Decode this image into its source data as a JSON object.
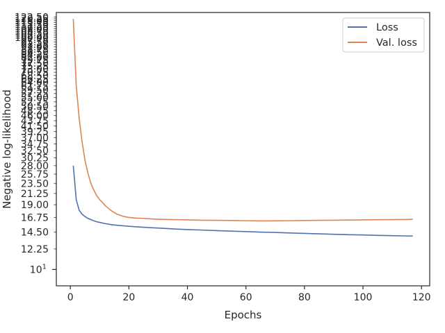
{
  "chart_data": {
    "type": "line",
    "title": "",
    "xlabel": "Epochs",
    "ylabel": "Negative log-likelihood",
    "yscale": "log",
    "xlim": [
      -4.8,
      122.8
    ],
    "ylim": [
      8.5,
      128
    ],
    "xticks": [
      0,
      20,
      40,
      60,
      80,
      100,
      120
    ],
    "ytick_labels": [
      "12.25",
      "14.50",
      "16.75",
      "19.00",
      "21.25",
      "23.50",
      "25.75",
      "28.00",
      "30.25",
      "32.50",
      "34.75",
      "37.00",
      "39.25",
      "41.50",
      "43.75",
      "46.00",
      "48.25",
      "50.50",
      "52.75",
      "55.00",
      "57.25",
      "59.50",
      "61.75",
      "64.00",
      "66.25",
      "68.50",
      "70.75",
      "73.00",
      "75.25",
      "77.50",
      "79.75",
      "82.00",
      "84.25",
      "86.50",
      "88.75",
      "91.00",
      "93.25",
      "95.50",
      "97.75",
      "100.00",
      "102.25",
      "104.50",
      "106.75",
      "109.00",
      "111.25",
      "113.50",
      "115.75",
      "118.00",
      "120.25",
      "122.50"
    ],
    "ytick_values": [
      12.25,
      14.5,
      16.75,
      19,
      21.25,
      23.5,
      25.75,
      28,
      30.25,
      32.5,
      34.75,
      37,
      39.25,
      41.5,
      43.75,
      46,
      48.25,
      50.5,
      52.75,
      55,
      57.25,
      59.5,
      61.75,
      64,
      66.25,
      68.5,
      70.75,
      73,
      75.25,
      77.5,
      79.75,
      82,
      84.25,
      86.5,
      88.75,
      91,
      93.25,
      95.5,
      97.75,
      100,
      102.25,
      104.5,
      106.75,
      109,
      111.25,
      113.5,
      115.75,
      118,
      120.25,
      122.5
    ],
    "major_tick": {
      "value": 10,
      "label_base": "10",
      "label_exp": "1"
    },
    "grid": false,
    "legend_position": "top-right",
    "series": [
      {
        "name": "Loss",
        "color": "#4c72b0",
        "x": [
          1,
          2,
          3,
          4,
          5,
          6,
          7,
          8,
          9,
          10,
          12,
          14,
          16,
          18,
          20,
          22,
          25,
          28,
          30,
          35,
          40,
          45,
          50,
          55,
          60,
          65,
          70,
          75,
          80,
          85,
          90,
          95,
          100,
          105,
          110,
          115,
          117
        ],
        "y": [
          28.0,
          20.0,
          18.0,
          17.3,
          16.9,
          16.6,
          16.4,
          16.2,
          16.05,
          15.95,
          15.75,
          15.6,
          15.5,
          15.42,
          15.35,
          15.28,
          15.2,
          15.12,
          15.08,
          14.95,
          14.85,
          14.78,
          14.7,
          14.62,
          14.56,
          14.48,
          14.43,
          14.36,
          14.3,
          14.24,
          14.18,
          14.12,
          14.08,
          14.02,
          13.98,
          13.94,
          13.93
        ]
      },
      {
        "name": "Val. loss",
        "color": "#dd8452",
        "x": [
          1,
          2,
          3,
          4,
          5,
          6,
          7,
          8,
          9,
          10,
          12,
          14,
          16,
          18,
          20,
          22,
          25,
          28,
          30,
          35,
          40,
          45,
          50,
          55,
          60,
          65,
          70,
          75,
          80,
          85,
          90,
          95,
          100,
          105,
          110,
          115,
          117
        ],
        "y": [
          120.0,
          62.0,
          45.0,
          35.5,
          29.5,
          26.0,
          23.5,
          22.0,
          20.8,
          20.0,
          18.8,
          17.9,
          17.3,
          16.95,
          16.75,
          16.65,
          16.6,
          16.5,
          16.45,
          16.4,
          16.35,
          16.3,
          16.28,
          16.25,
          16.22,
          16.18,
          16.2,
          16.22,
          16.25,
          16.28,
          16.3,
          16.32,
          16.35,
          16.38,
          16.4,
          16.42,
          16.45
        ]
      }
    ]
  }
}
